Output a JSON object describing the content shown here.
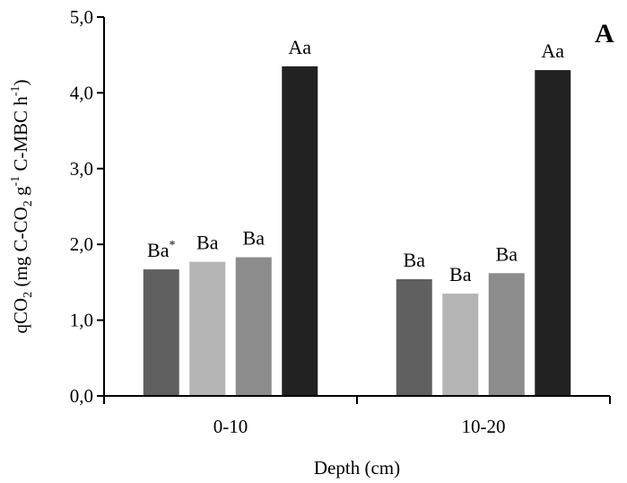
{
  "chart_data": {
    "type": "bar",
    "panel_label": "A",
    "title": "",
    "xlabel": "Depth (cm)",
    "ylabel_parts": [
      "qCO",
      "2",
      " (mg C-CO",
      "2",
      " g",
      "-1",
      " C-MBC h",
      "-1",
      ")"
    ],
    "ylabel": "qCO2 (mg C-CO2 g-1 C-MBC h-1)",
    "ylim": [
      0,
      5
    ],
    "yticks": [
      "0,0",
      "1,0",
      "2,0",
      "3,0",
      "4,0",
      "5,0"
    ],
    "categories": [
      "0-10",
      "10-20"
    ],
    "grid": false,
    "series": [
      {
        "name": "series-1",
        "color": "#606060",
        "values": [
          1.67,
          1.54
        ],
        "labels": [
          "Ba*",
          "Ba"
        ]
      },
      {
        "name": "series-2",
        "color": "#b4b4b4",
        "values": [
          1.77,
          1.35
        ],
        "labels": [
          "Ba",
          "Ba"
        ]
      },
      {
        "name": "series-3",
        "color": "#8c8c8c",
        "values": [
          1.83,
          1.62
        ],
        "labels": [
          "Ba",
          "Ba"
        ]
      },
      {
        "name": "series-4",
        "color": "#222222",
        "values": [
          4.35,
          4.3
        ],
        "labels": [
          "Aa",
          "Aa"
        ]
      }
    ]
  }
}
